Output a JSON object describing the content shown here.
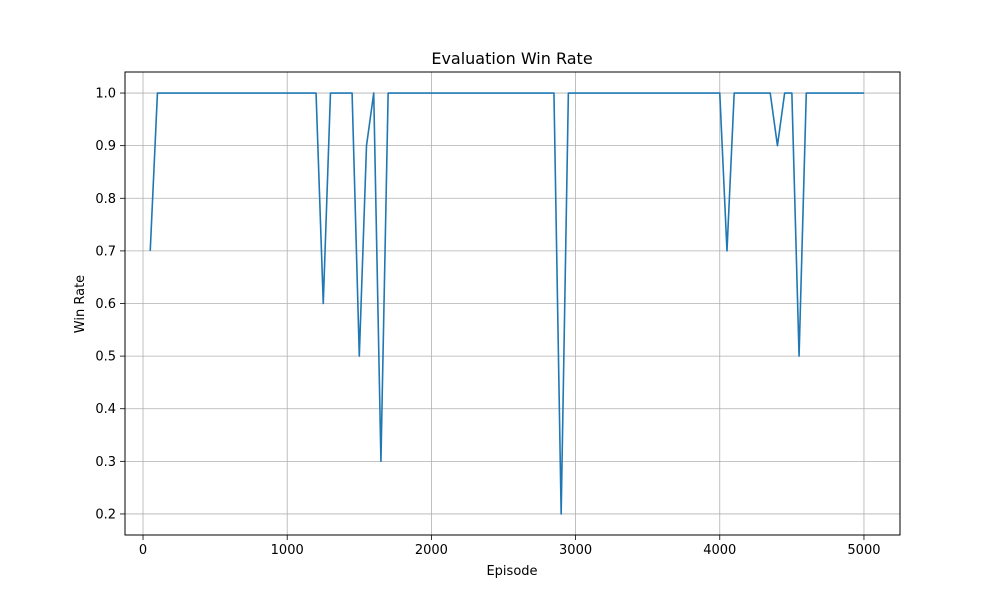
{
  "chart_data": {
    "type": "line",
    "title": "Evaluation Win Rate",
    "xlabel": "Episode",
    "ylabel": "Win Rate",
    "xlim": [
      -125,
      5250
    ],
    "ylim": [
      0.16,
      1.04
    ],
    "xticks": [
      0,
      1000,
      2000,
      3000,
      4000,
      5000
    ],
    "xtick_labels": [
      "0",
      "1000",
      "2000",
      "3000",
      "4000",
      "5000"
    ],
    "yticks": [
      0.2,
      0.3,
      0.4,
      0.5,
      0.6,
      0.7,
      0.8,
      0.9,
      1.0
    ],
    "ytick_labels": [
      "0.2",
      "0.3",
      "0.4",
      "0.5",
      "0.6",
      "0.7",
      "0.8",
      "0.9",
      "1.0"
    ],
    "grid": true,
    "series": [
      {
        "color": "#1f77b4",
        "x": [
          50,
          100,
          150,
          200,
          250,
          300,
          350,
          400,
          450,
          500,
          550,
          600,
          650,
          700,
          750,
          800,
          850,
          900,
          950,
          1000,
          1050,
          1100,
          1150,
          1200,
          1250,
          1300,
          1350,
          1400,
          1450,
          1500,
          1550,
          1600,
          1650,
          1700,
          1750,
          1800,
          1850,
          1900,
          1950,
          2000,
          2050,
          2100,
          2150,
          2200,
          2250,
          2300,
          2350,
          2400,
          2450,
          2500,
          2550,
          2600,
          2650,
          2700,
          2750,
          2800,
          2850,
          2900,
          2950,
          3000,
          3050,
          3100,
          3150,
          3200,
          3250,
          3300,
          3350,
          3400,
          3450,
          3500,
          3550,
          3600,
          3650,
          3700,
          3750,
          3800,
          3850,
          3900,
          3950,
          4000,
          4050,
          4100,
          4150,
          4200,
          4250,
          4300,
          4350,
          4400,
          4450,
          4500,
          4550,
          4600,
          4650,
          4700,
          4750,
          4800,
          4850,
          4900,
          4950,
          5000
        ],
        "y": [
          0.7,
          1.0,
          1.0,
          1.0,
          1.0,
          1.0,
          1.0,
          1.0,
          1.0,
          1.0,
          1.0,
          1.0,
          1.0,
          1.0,
          1.0,
          1.0,
          1.0,
          1.0,
          1.0,
          1.0,
          1.0,
          1.0,
          1.0,
          1.0,
          0.6,
          1.0,
          1.0,
          1.0,
          1.0,
          0.5,
          0.9,
          1.0,
          0.3,
          1.0,
          1.0,
          1.0,
          1.0,
          1.0,
          1.0,
          1.0,
          1.0,
          1.0,
          1.0,
          1.0,
          1.0,
          1.0,
          1.0,
          1.0,
          1.0,
          1.0,
          1.0,
          1.0,
          1.0,
          1.0,
          1.0,
          1.0,
          1.0,
          0.2,
          1.0,
          1.0,
          1.0,
          1.0,
          1.0,
          1.0,
          1.0,
          1.0,
          1.0,
          1.0,
          1.0,
          1.0,
          1.0,
          1.0,
          1.0,
          1.0,
          1.0,
          1.0,
          1.0,
          1.0,
          1.0,
          1.0,
          0.7,
          1.0,
          1.0,
          1.0,
          1.0,
          1.0,
          1.0,
          0.9,
          1.0,
          1.0,
          0.5,
          1.0,
          1.0,
          1.0,
          1.0,
          1.0,
          1.0,
          1.0,
          1.0,
          1.0
        ]
      }
    ]
  }
}
